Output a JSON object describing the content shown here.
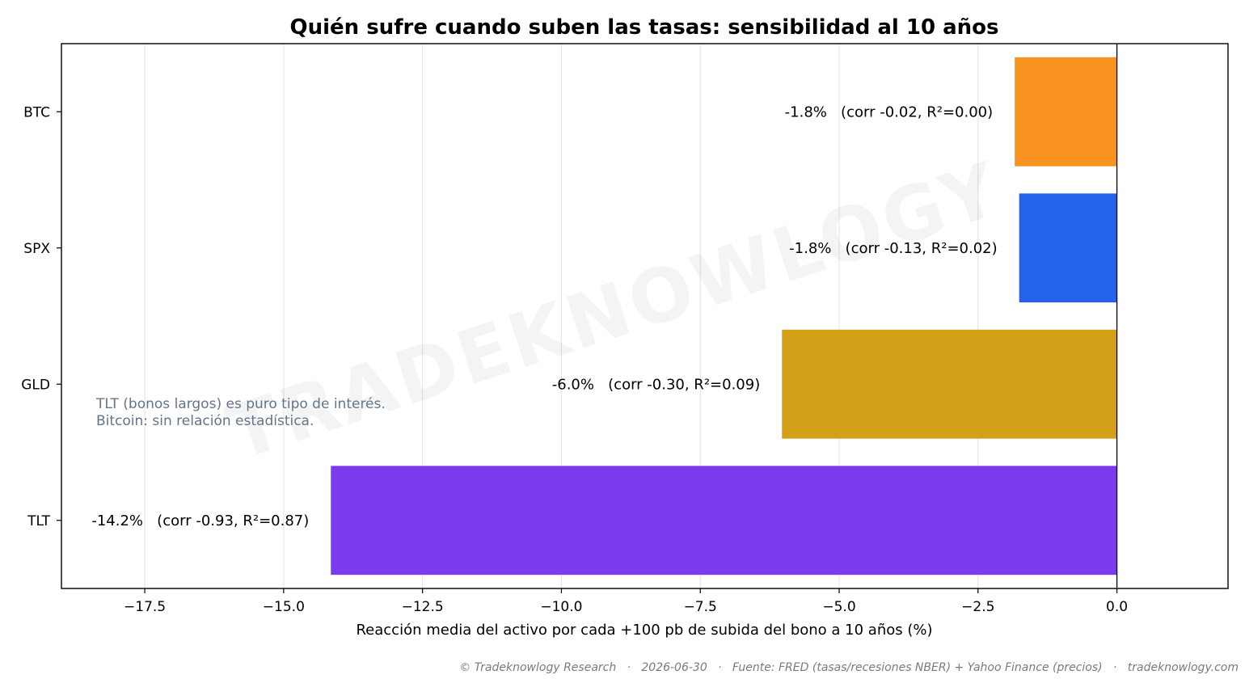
{
  "chart_data": {
    "type": "bar",
    "orientation": "horizontal",
    "title": "Quién sufre cuando suben las tasas: sensibilidad al 10 años",
    "xlabel": "Reacción media del activo por cada +100 pb de subida del bono a 10 años (%)",
    "ylabel": "",
    "xlim": [
      -19.0,
      2.0
    ],
    "x_ticks": [
      -17.5,
      -15.0,
      -12.5,
      -10.0,
      -7.5,
      -5.0,
      -2.5,
      0.0
    ],
    "x_tick_labels": [
      "−17.5",
      "−15.0",
      "−12.5",
      "−10.0",
      "−7.5",
      "−5.0",
      "−2.5",
      "0.0"
    ],
    "grid": "vertical",
    "categories": [
      "BTC",
      "SPX",
      "GLD",
      "TLT"
    ],
    "values": [
      -1.84,
      -1.76,
      -6.03,
      -14.15
    ],
    "colors": [
      "#f7931e",
      "#2563eb",
      "#d4a017",
      "#7c3aed"
    ],
    "bar_labels": [
      "-1.8%   (corr -0.02, R²=0.00)",
      "-1.8%   (corr -0.13, R²=0.02)",
      "-6.0%   (corr -0.30, R²=0.09)",
      "-14.2%   (corr -0.93, R²=0.87)"
    ],
    "annotation": [
      "TLT (bonos largos) es puro tipo de interés.",
      "Bitcoin: sin relación estadística."
    ]
  },
  "watermark": "TRADEKNOWLOGY",
  "footer": "© Tradeknowlogy Research   ·   2026-06-30   ·   Fuente: FRED (tasas/recesiones NBER) + Yahoo Finance (precios)   ·   tradeknowlogy.com"
}
